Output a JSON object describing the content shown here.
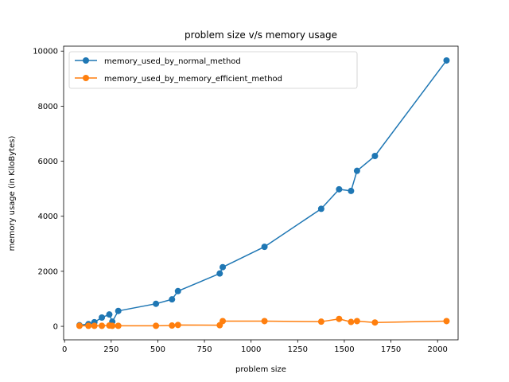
{
  "chart_data": {
    "type": "line",
    "title": "problem size v/s memory usage",
    "xlabel": "problem size",
    "ylabel": "memory usage (in KiloBytes)",
    "xlim": [
      -5,
      2110
    ],
    "ylim": [
      -490,
      10180
    ],
    "xticks": [
      0,
      250,
      500,
      750,
      1000,
      1250,
      1500,
      1750,
      2000
    ],
    "yticks": [
      0,
      2000,
      4000,
      6000,
      8000,
      10000
    ],
    "grid": false,
    "legend_position": "top-left",
    "series": [
      {
        "name": "memory_used_by_normal_method",
        "color": "#1f77b4",
        "x": [
          80,
          128,
          160,
          200,
          240,
          256,
          288,
          490,
          576,
          608,
          832,
          848,
          1072,
          1376,
          1472,
          1536,
          1568,
          1664,
          2048
        ],
        "y": [
          40,
          80,
          150,
          320,
          430,
          170,
          560,
          820,
          980,
          1280,
          1920,
          2150,
          2890,
          4270,
          4980,
          4920,
          5650,
          6190,
          9660
        ]
      },
      {
        "name": "memory_used_by_memory_efficient_method",
        "color": "#ff7f0e",
        "x": [
          80,
          128,
          160,
          200,
          240,
          256,
          288,
          490,
          576,
          608,
          832,
          848,
          1072,
          1376,
          1472,
          1536,
          1568,
          1664,
          2048
        ],
        "y": [
          20,
          20,
          20,
          20,
          30,
          20,
          20,
          20,
          30,
          50,
          40,
          190,
          190,
          170,
          270,
          160,
          190,
          140,
          190
        ]
      }
    ]
  }
}
